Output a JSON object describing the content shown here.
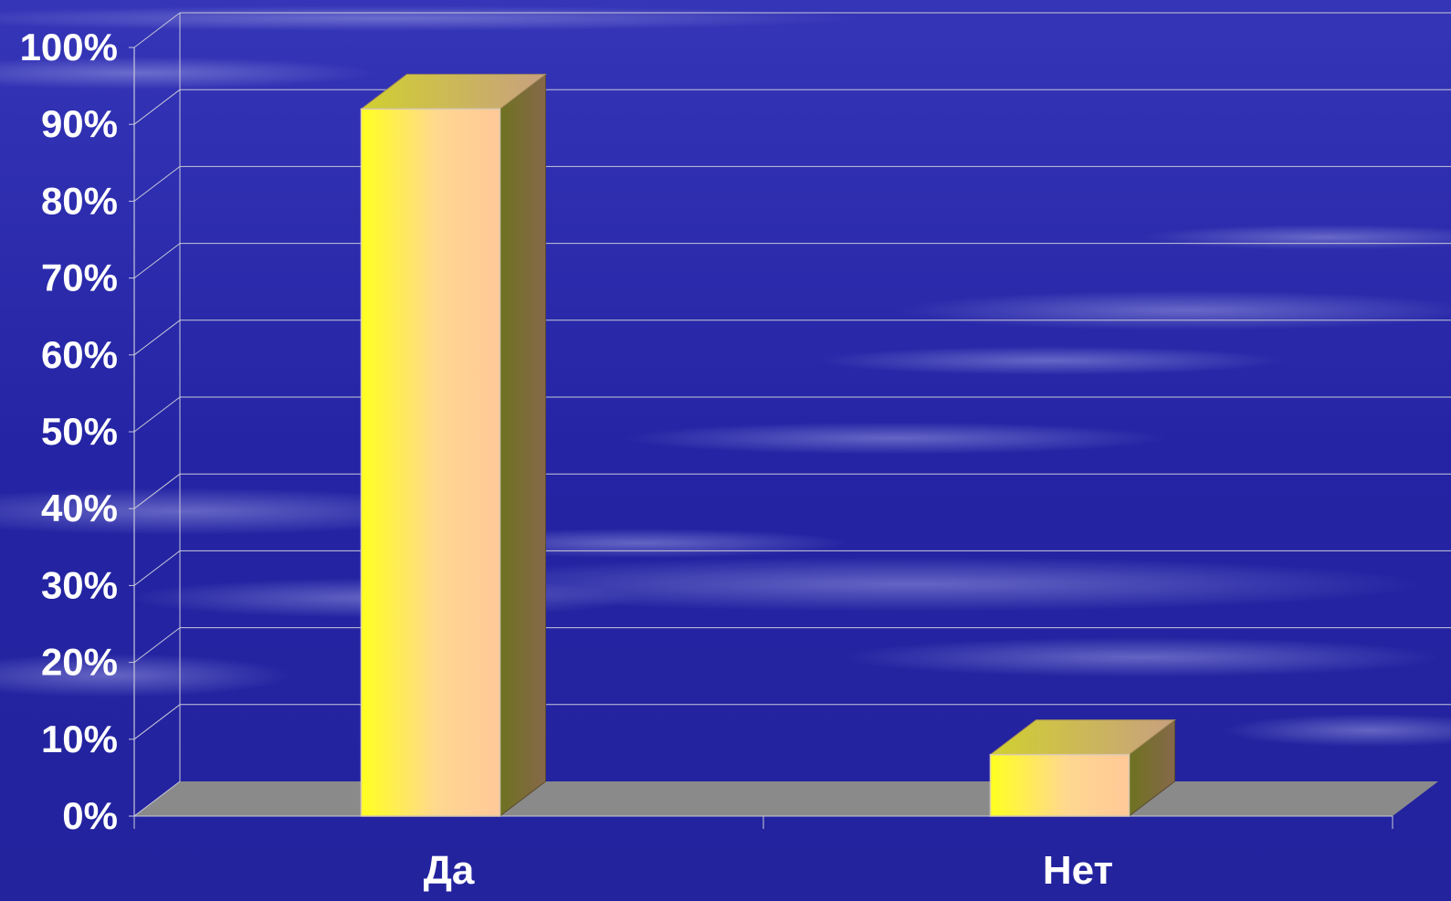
{
  "chart_data": {
    "type": "bar",
    "style": "3d-column",
    "categories": [
      "Да",
      "Нет"
    ],
    "values": [
      92,
      8
    ],
    "ylim": [
      0,
      100
    ],
    "yticks": [
      "0%",
      "10%",
      "20%",
      "30%",
      "40%",
      "50%",
      "60%",
      "70%",
      "80%",
      "90%",
      "100%"
    ],
    "grid": true,
    "legend": "none",
    "title": "",
    "xlabel": "",
    "ylabel": ""
  },
  "colors": {
    "background": "#2626a8",
    "gridline": "#c8c8d8",
    "floor": "#8a8a8a",
    "bar_front_left": "#ffff20",
    "bar_front_right": "#ffc898",
    "bar_side": "#7f6a48",
    "bar_top": "#c8b078",
    "label_text": "#ffffff"
  }
}
